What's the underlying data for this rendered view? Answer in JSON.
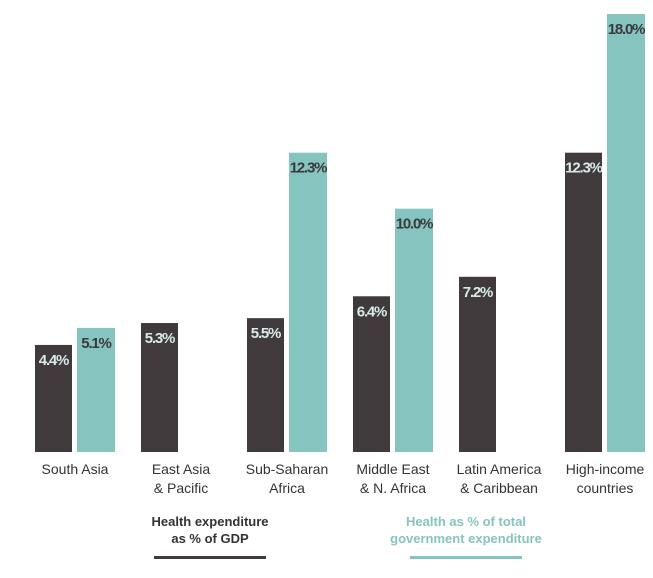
{
  "chart_data": {
    "type": "bar",
    "categories": [
      "South Asia",
      "East Asia\n& Pacific",
      "Sub-Saharan\nAfrica",
      "Middle East\n& N. Africa",
      "Latin America\n& Caribbean",
      "High-income\ncountries"
    ],
    "series": [
      {
        "name": "Health expenditure\nas % of GDP",
        "color": "#403a3d",
        "values": [
          4.4,
          5.3,
          5.5,
          6.4,
          7.2,
          12.3
        ],
        "value_labels": [
          "4.4%",
          "5.3%",
          "5.5%",
          "6.4%",
          "7.2%",
          "12.3%"
        ]
      },
      {
        "name": "Health as % of total\ngovernment expenditure",
        "color": "#86c4bf",
        "values": [
          5.1,
          null,
          12.3,
          10.0,
          null,
          18.0
        ],
        "value_labels": [
          "5.1%",
          null,
          "12.3%",
          "10.0%",
          null,
          "18.0%"
        ]
      }
    ]
  }
}
